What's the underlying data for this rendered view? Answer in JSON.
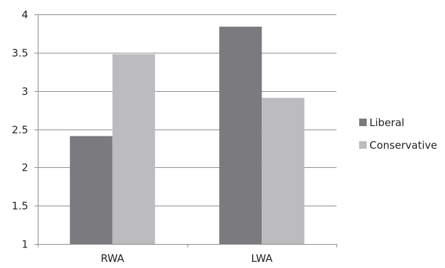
{
  "chart_data": {
    "type": "bar",
    "title": "",
    "xlabel": "",
    "ylabel": "",
    "categories": [
      "RWA",
      "LWA"
    ],
    "series": [
      {
        "name": "Liberal",
        "values": [
          2.41,
          3.84
        ],
        "color": "#7b7b7f"
      },
      {
        "name": "Conservative",
        "values": [
          3.48,
          2.91
        ],
        "color": "#bcbcbe"
      }
    ],
    "ylim": [
      1,
      4
    ],
    "yticks": [
      1,
      1.5,
      2,
      2.5,
      3,
      3.5,
      4
    ],
    "ytick_labels": [
      "1",
      "1.5",
      "2",
      "2.5",
      "3",
      "3.5",
      "4"
    ],
    "grid": true,
    "legend_position": "right"
  }
}
